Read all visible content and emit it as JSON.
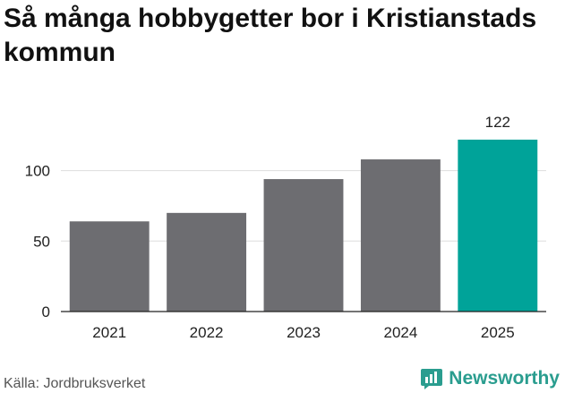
{
  "title": "Så många hobbygetter bor i Kristianstads kommun",
  "source": "Källa: Jordbruksverket",
  "brand": "Newsworthy",
  "colors": {
    "bar": "#6d6d71",
    "highlight": "#00a399",
    "grid": "#dddddd",
    "brand": "#2a9d8f"
  },
  "chart_data": {
    "type": "bar",
    "categories": [
      "2021",
      "2022",
      "2023",
      "2024",
      "2025"
    ],
    "values": [
      64,
      70,
      94,
      108,
      122
    ],
    "highlight_index": 4,
    "data_labels": [
      null,
      null,
      null,
      null,
      "122"
    ],
    "yticks": [
      0,
      50,
      100
    ],
    "ylim": [
      0,
      122
    ],
    "grid": true
  }
}
